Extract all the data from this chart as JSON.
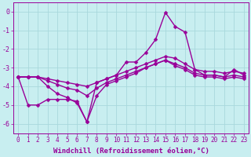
{
  "background_color": "#c8eef0",
  "grid_color": "#a8d8dc",
  "line_color": "#990099",
  "marker": "D",
  "marker_size": 2.5,
  "line_width": 1.0,
  "xlabel": "Windchill (Refroidissement éolien,°C)",
  "xlabel_fontsize": 6.5,
  "xtick_fontsize": 5.5,
  "ytick_fontsize": 6,
  "ylim": [
    -6.5,
    0.5
  ],
  "xlim": [
    -0.5,
    23.5
  ],
  "yticks": [
    0,
    -1,
    -2,
    -3,
    -4,
    -5,
    -6
  ],
  "xticks": [
    0,
    1,
    2,
    3,
    4,
    5,
    6,
    7,
    8,
    9,
    10,
    11,
    12,
    13,
    14,
    15,
    16,
    17,
    18,
    19,
    20,
    21,
    22,
    23
  ],
  "line1_y": [
    -3.5,
    -3.5,
    -3.5,
    -3.6,
    -3.7,
    -3.8,
    -3.9,
    -4.0,
    -3.8,
    -3.6,
    -3.4,
    -3.2,
    -3.0,
    -2.8,
    -2.6,
    -2.4,
    -2.5,
    -2.8,
    -3.1,
    -3.2,
    -3.2,
    -3.3,
    -3.2,
    -3.3
  ],
  "line2_y": [
    -3.5,
    -3.5,
    -3.5,
    -3.7,
    -3.9,
    -4.1,
    -4.2,
    -4.5,
    -4.1,
    -3.8,
    -3.6,
    -3.4,
    -3.2,
    -3.0,
    -2.8,
    -2.6,
    -2.8,
    -3.0,
    -3.3,
    -3.4,
    -3.4,
    -3.5,
    -3.4,
    -3.5
  ],
  "line3_y": [
    -3.5,
    -3.5,
    -3.5,
    -4.0,
    -4.4,
    -4.6,
    -4.9,
    -5.9,
    -4.5,
    -3.9,
    -3.7,
    -3.5,
    -3.3,
    -3.0,
    -2.8,
    -2.6,
    -2.9,
    -3.1,
    -3.4,
    -3.5,
    -3.5,
    -3.6,
    -3.5,
    -3.6
  ],
  "line4_y": [
    -3.5,
    -5.0,
    -5.0,
    -4.7,
    -4.7,
    -4.7,
    -4.8,
    -5.9,
    -3.8,
    -3.6,
    -3.4,
    -2.7,
    -2.7,
    -2.2,
    -1.5,
    -0.05,
    -0.8,
    -1.1,
    -3.1,
    -3.4,
    -3.4,
    -3.5,
    -3.1,
    -3.4
  ]
}
